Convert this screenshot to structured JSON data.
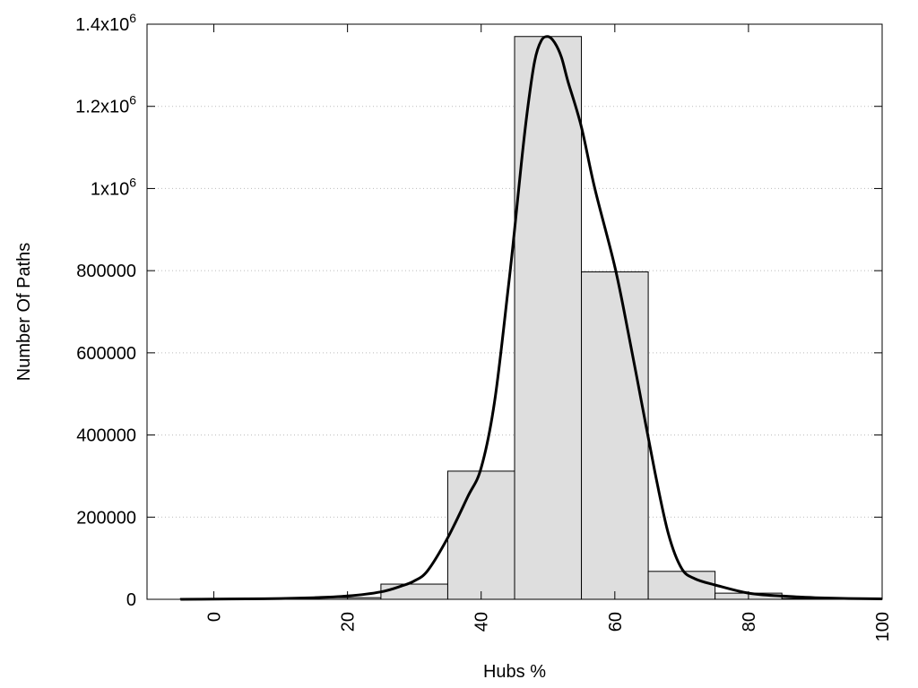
{
  "chart_data": {
    "type": "bar",
    "xlabel": "Hubs %",
    "ylabel": "Number Of Paths",
    "xlim": [
      -10,
      100
    ],
    "ylim": [
      0,
      1400000
    ],
    "grid": {
      "y": true,
      "style": "dotted"
    },
    "x_ticks": [
      {
        "value": 0,
        "label": "0"
      },
      {
        "value": 20,
        "label": "20"
      },
      {
        "value": 40,
        "label": "40"
      },
      {
        "value": 60,
        "label": "60"
      },
      {
        "value": 80,
        "label": "80"
      },
      {
        "value": 100,
        "label": "100"
      }
    ],
    "y_ticks": [
      {
        "value": 0,
        "label": "0"
      },
      {
        "value": 200000,
        "label": "200000"
      },
      {
        "value": 400000,
        "label": "400000"
      },
      {
        "value": 600000,
        "label": "600000"
      },
      {
        "value": 800000,
        "label": "800000"
      },
      {
        "value": 1000000,
        "label": "1x10",
        "sup": "6"
      },
      {
        "value": 1200000,
        "label": "1.2x10",
        "sup": "6"
      },
      {
        "value": 1400000,
        "label": "1.4x10",
        "sup": "6"
      }
    ],
    "bins": [
      {
        "start": -5,
        "end": 5,
        "value": 2000
      },
      {
        "start": 5,
        "end": 15,
        "value": 1000
      },
      {
        "start": 15,
        "end": 25,
        "value": 4000
      },
      {
        "start": 25,
        "end": 35,
        "value": 37000
      },
      {
        "start": 35,
        "end": 45,
        "value": 312000
      },
      {
        "start": 45,
        "end": 55,
        "value": 1370000
      },
      {
        "start": 55,
        "end": 65,
        "value": 797000
      },
      {
        "start": 65,
        "end": 75,
        "value": 68000
      },
      {
        "start": 75,
        "end": 85,
        "value": 15000
      },
      {
        "start": 85,
        "end": 95,
        "value": 2000
      }
    ],
    "curve": {
      "x": [
        -5,
        0,
        5,
        10,
        15,
        20,
        25,
        28,
        30,
        32,
        35,
        38,
        40,
        42,
        44,
        45,
        46,
        47,
        48,
        49,
        50,
        51,
        52,
        53,
        55,
        57,
        60,
        62,
        64,
        66,
        68,
        70,
        72,
        75,
        80,
        85,
        90,
        95,
        100
      ],
      "y": [
        0,
        500,
        1000,
        2000,
        4000,
        8000,
        18000,
        32000,
        45000,
        70000,
        150000,
        250000,
        320000,
        480000,
        750000,
        900000,
        1060000,
        1200000,
        1310000,
        1360000,
        1370000,
        1355000,
        1320000,
        1260000,
        1150000,
        1000000,
        810000,
        650000,
        480000,
        310000,
        160000,
        75000,
        50000,
        35000,
        15000,
        8000,
        4000,
        2000,
        1000
      ]
    },
    "colors": {
      "bar_fill": "#dedede",
      "bar_stroke": "#000000",
      "curve": "#000000",
      "grid": "#bbbbbb"
    }
  }
}
